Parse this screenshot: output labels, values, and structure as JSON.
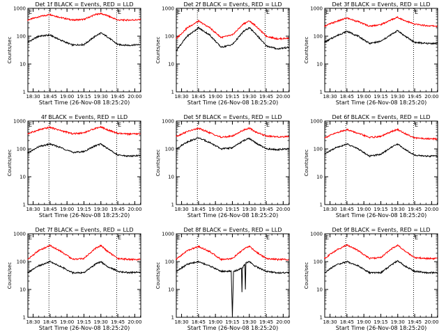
{
  "chart_data": [
    {
      "type": "line",
      "title": "Det 1f BLACK = Events, RED = LLD",
      "xlabel": "Start Time (26-Nov-08 18:25:20)",
      "ylabel": "Counts/sec",
      "xlim": [
        "18:25:20",
        "20:05:20"
      ],
      "ylim": [
        1,
        1000
      ],
      "yscale": "log",
      "xticks": [
        "18:30",
        "18:45",
        "19:00",
        "19:15",
        "19:30",
        "19:45",
        "20:00"
      ],
      "yticks": [
        "1",
        "10",
        "100",
        "1000"
      ],
      "vlines": [
        "18:44",
        "19:44"
      ],
      "markers": [
        {
          "text": "E",
          "at": "18:25"
        },
        {
          "text": "E",
          "at": "19:44"
        }
      ],
      "series": [
        {
          "color": "#ff0000",
          "x": [
            "18:25",
            "18:35",
            "18:45",
            "18:55",
            "19:05",
            "19:15",
            "19:25",
            "19:30",
            "19:35",
            "19:45",
            "19:55",
            "20:05"
          ],
          "values": [
            380,
            500,
            600,
            460,
            380,
            400,
            600,
            650,
            560,
            380,
            380,
            390
          ]
        },
        {
          "color": "#000000",
          "x": [
            "18:25",
            "18:35",
            "18:45",
            "18:55",
            "19:05",
            "19:15",
            "19:25",
            "19:30",
            "19:35",
            "19:45",
            "19:55",
            "20:05"
          ],
          "values": [
            60,
            100,
            110,
            70,
            48,
            50,
            100,
            130,
            100,
            50,
            47,
            50
          ]
        }
      ]
    },
    {
      "type": "line",
      "title": "Det 2f BLACK = Events, RED = LLD",
      "xlabel": "Start Time (26-Nov-08 18:25:20)",
      "ylabel": "Counts/sec",
      "xlim": [
        "18:25:20",
        "20:05:20"
      ],
      "ylim": [
        1,
        1000
      ],
      "yscale": "log",
      "xticks": [
        "18:30",
        "18:45",
        "19:00",
        "19:15",
        "19:30",
        "19:45",
        "20:00"
      ],
      "yticks": [
        "1",
        "10",
        "100",
        "1000"
      ],
      "vlines": [
        "18:44",
        "19:44"
      ],
      "markers": [
        {
          "text": "E",
          "at": "18:25"
        },
        {
          "text": "E",
          "at": "19:44"
        }
      ],
      "series": [
        {
          "color": "#ff0000",
          "x": [
            "18:25",
            "18:35",
            "18:45",
            "18:55",
            "19:05",
            "19:15",
            "19:25",
            "19:30",
            "19:35",
            "19:45",
            "19:55",
            "20:05"
          ],
          "values": [
            80,
            200,
            350,
            200,
            90,
            110,
            280,
            350,
            250,
            100,
            80,
            85
          ]
        },
        {
          "color": "#000000",
          "x": [
            "18:25",
            "18:35",
            "18:45",
            "18:55",
            "19:05",
            "19:15",
            "19:25",
            "19:30",
            "19:35",
            "19:45",
            "19:55",
            "20:05"
          ],
          "values": [
            30,
            100,
            200,
            110,
            40,
            50,
            150,
            200,
            130,
            45,
            35,
            40
          ]
        }
      ]
    },
    {
      "type": "line",
      "title": "Det 3f BLACK = Events, RED = LLD",
      "xlabel": "Start Time (26-Nov-08 18:25:20)",
      "ylabel": "Counts/sec",
      "xlim": [
        "18:25:20",
        "20:05:20"
      ],
      "ylim": [
        1,
        1000
      ],
      "yscale": "log",
      "xticks": [
        "18:30",
        "18:45",
        "19:00",
        "19:15",
        "19:30",
        "19:45",
        "20:00"
      ],
      "yticks": [
        "1",
        "10",
        "100",
        "1000"
      ],
      "vlines": [
        "18:44",
        "19:44"
      ],
      "markers": [
        {
          "text": "E",
          "at": "18:25"
        },
        {
          "text": "E",
          "at": "19:44"
        }
      ],
      "series": [
        {
          "color": "#ff0000",
          "x": [
            "18:25",
            "18:35",
            "18:45",
            "18:55",
            "19:05",
            "19:15",
            "19:25",
            "19:30",
            "19:35",
            "19:45",
            "19:55",
            "20:05"
          ],
          "values": [
            230,
            330,
            450,
            330,
            230,
            260,
            400,
            480,
            380,
            270,
            240,
            230
          ]
        },
        {
          "color": "#000000",
          "x": [
            "18:25",
            "18:35",
            "18:45",
            "18:55",
            "19:05",
            "19:15",
            "19:25",
            "19:30",
            "19:35",
            "19:45",
            "19:55",
            "20:05"
          ],
          "values": [
            60,
            100,
            150,
            100,
            55,
            65,
            120,
            160,
            110,
            60,
            55,
            55
          ]
        }
      ]
    },
    {
      "type": "line",
      "title": "4f BLACK = Events, RED = LLD",
      "xlabel": "Start Time (26-Nov-08 18:25:20)",
      "ylabel": "Counts/sec",
      "xlim": [
        "18:25:20",
        "20:05:20"
      ],
      "ylim": [
        1,
        1000
      ],
      "yscale": "log",
      "xticks": [
        "18:30",
        "18:45",
        "19:00",
        "19:15",
        "19:30",
        "19:45",
        "20:00"
      ],
      "yticks": [
        "1",
        "10",
        "100",
        "1000"
      ],
      "vlines": [
        "18:44",
        "19:44"
      ],
      "markers": [
        {
          "text": "E",
          "at": "18:25"
        },
        {
          "text": "E",
          "at": "19:44"
        }
      ],
      "series": [
        {
          "color": "#ff0000",
          "x": [
            "18:25",
            "18:35",
            "18:45",
            "18:55",
            "19:05",
            "19:15",
            "19:25",
            "19:30",
            "19:35",
            "19:45",
            "19:55",
            "20:05"
          ],
          "values": [
            350,
            480,
            600,
            450,
            350,
            380,
            550,
            620,
            500,
            360,
            340,
            350
          ]
        },
        {
          "color": "#000000",
          "x": [
            "18:25",
            "18:35",
            "18:45",
            "18:55",
            "19:05",
            "19:15",
            "19:25",
            "19:30",
            "19:35",
            "19:45",
            "19:55",
            "20:05"
          ],
          "values": [
            70,
            120,
            150,
            110,
            75,
            80,
            130,
            150,
            110,
            60,
            55,
            58
          ]
        }
      ]
    },
    {
      "type": "line",
      "title": "Det 5f BLACK = Events, RED = LLD",
      "xlabel": "Start Time (26-Nov-08 18:25:20)",
      "ylabel": "Counts/sec",
      "xlim": [
        "18:25:20",
        "20:05:20"
      ],
      "ylim": [
        1,
        1000
      ],
      "yscale": "log",
      "xticks": [
        "18:30",
        "18:45",
        "19:00",
        "19:15",
        "19:30",
        "19:45",
        "20:00"
      ],
      "yticks": [
        "1",
        "10",
        "100",
        "1000"
      ],
      "vlines": [
        "18:44",
        "19:44"
      ],
      "markers": [
        {
          "text": "E",
          "at": "18:25"
        },
        {
          "text": "E",
          "at": "19:44"
        }
      ],
      "series": [
        {
          "color": "#ff0000",
          "x": [
            "18:25",
            "18:35",
            "18:45",
            "18:55",
            "19:05",
            "19:15",
            "19:25",
            "19:30",
            "19:35",
            "19:45",
            "19:55",
            "20:05"
          ],
          "values": [
            280,
            420,
            550,
            380,
            260,
            290,
            480,
            560,
            420,
            290,
            270,
            280
          ]
        },
        {
          "color": "#000000",
          "x": [
            "18:25",
            "18:35",
            "18:45",
            "18:55",
            "19:05",
            "19:15",
            "19:25",
            "19:30",
            "19:35",
            "19:45",
            "19:55",
            "20:05"
          ],
          "values": [
            100,
            180,
            250,
            170,
            100,
            110,
            200,
            240,
            170,
            100,
            95,
            100
          ]
        }
      ]
    },
    {
      "type": "line",
      "title": "Det 6f BLACK = Events, RED = LLD",
      "xlabel": "Start Time (26-Nov-08 18:25:20)",
      "ylabel": "Counts/sec",
      "xlim": [
        "18:25:20",
        "20:05:20"
      ],
      "ylim": [
        1,
        1000
      ],
      "yscale": "log",
      "xticks": [
        "18:30",
        "18:45",
        "19:00",
        "19:15",
        "19:30",
        "19:45",
        "20:00"
      ],
      "yticks": [
        "1",
        "10",
        "100",
        "1000"
      ],
      "vlines": [
        "18:44",
        "19:44"
      ],
      "markers": [
        {
          "text": "E",
          "at": "18:25"
        },
        {
          "text": "E",
          "at": "19:44"
        }
      ],
      "series": [
        {
          "color": "#ff0000",
          "x": [
            "18:25",
            "18:35",
            "18:45",
            "18:55",
            "19:05",
            "19:15",
            "19:25",
            "19:30",
            "19:35",
            "19:45",
            "19:55",
            "20:05"
          ],
          "values": [
            250,
            370,
            500,
            360,
            260,
            280,
            430,
            500,
            380,
            250,
            230,
            230
          ]
        },
        {
          "color": "#000000",
          "x": [
            "18:25",
            "18:35",
            "18:45",
            "18:55",
            "19:05",
            "19:15",
            "19:25",
            "19:30",
            "19:35",
            "19:45",
            "19:55",
            "20:05"
          ],
          "values": [
            65,
            110,
            150,
            100,
            55,
            65,
            120,
            150,
            105,
            60,
            55,
            55
          ]
        }
      ]
    },
    {
      "type": "line",
      "title": "Det 7f BLACK = Events, RED = LLD",
      "xlabel": "Start Time (26-Nov-08 18:25:20)",
      "ylabel": "Counts/sec",
      "xlim": [
        "18:25:20",
        "20:05:20"
      ],
      "ylim": [
        1,
        1000
      ],
      "yscale": "log",
      "xticks": [
        "18:30",
        "18:45",
        "19:00",
        "19:15",
        "19:30",
        "19:45",
        "20:00"
      ],
      "yticks": [
        "1",
        "10",
        "100",
        "1000"
      ],
      "vlines": [
        "18:44",
        "19:44"
      ],
      "markers": [
        {
          "text": "E",
          "at": "18:25"
        },
        {
          "text": "E",
          "at": "19:44"
        }
      ],
      "series": [
        {
          "color": "#ff0000",
          "x": [
            "18:25",
            "18:35",
            "18:45",
            "18:55",
            "19:05",
            "19:15",
            "19:25",
            "19:30",
            "19:35",
            "19:45",
            "19:55",
            "20:05"
          ],
          "values": [
            120,
            250,
            380,
            230,
            120,
            130,
            300,
            380,
            250,
            130,
            120,
            120
          ]
        },
        {
          "color": "#000000",
          "x": [
            "18:25",
            "18:35",
            "18:45",
            "18:55",
            "19:05",
            "19:15",
            "19:25",
            "19:30",
            "19:35",
            "19:45",
            "19:55",
            "20:05"
          ],
          "values": [
            40,
            70,
            100,
            65,
            40,
            40,
            80,
            100,
            70,
            45,
            40,
            42
          ]
        }
      ]
    },
    {
      "type": "line",
      "title": "Det 8f BLACK = Events, RED = LLD",
      "xlabel": "Start Time (26-Nov-08 18:25:20)",
      "ylabel": "Counts/sec",
      "xlim": [
        "18:25:20",
        "20:05:20"
      ],
      "ylim": [
        1,
        1000
      ],
      "yscale": "log",
      "xticks": [
        "18:30",
        "18:45",
        "19:00",
        "19:15",
        "19:30",
        "19:45",
        "20:00"
      ],
      "yticks": [
        "1",
        "10",
        "100",
        "1000"
      ],
      "vlines": [
        "18:44",
        "19:44"
      ],
      "markers": [
        {
          "text": "E",
          "at": "18:25"
        },
        {
          "text": "E",
          "at": "19:44"
        }
      ],
      "series": [
        {
          "color": "#ff0000",
          "x": [
            "18:25",
            "18:35",
            "18:45",
            "18:55",
            "19:05",
            "19:15",
            "19:25",
            "19:30",
            "19:35",
            "19:45",
            "19:55",
            "20:05"
          ],
          "values": [
            120,
            250,
            350,
            230,
            120,
            130,
            280,
            360,
            240,
            130,
            120,
            120
          ]
        },
        {
          "color": "#000000",
          "x": [
            "18:25",
            "18:35",
            "18:45",
            "18:55",
            "19:05",
            "19:14",
            "19:15",
            "19:16",
            "19:20",
            "19:23",
            "19:23.5",
            "19:24",
            "19:26",
            "19:26.5",
            "19:27",
            "19:30",
            "19:35",
            "19:45",
            "19:55",
            "20:05"
          ],
          "values": [
            45,
            80,
            100,
            70,
            45,
            45,
            1,
            45,
            50,
            60,
            8,
            60,
            80,
            10,
            90,
            100,
            70,
            45,
            40,
            40
          ]
        }
      ]
    },
    {
      "type": "line",
      "title": "Det 9f BLACK = Events, RED = LLD",
      "xlabel": "Start Time (26-Nov-08 18:25:20)",
      "ylabel": "Counts/sec",
      "xlim": [
        "18:25:20",
        "20:05:20"
      ],
      "ylim": [
        1,
        1000
      ],
      "yscale": "log",
      "xticks": [
        "18:30",
        "18:45",
        "19:00",
        "19:15",
        "19:30",
        "19:45",
        "20:00"
      ],
      "yticks": [
        "1",
        "10",
        "100",
        "1000"
      ],
      "vlines": [
        "18:44",
        "19:44"
      ],
      "markers": [
        {
          "text": "E",
          "at": "18:25"
        },
        {
          "text": "E",
          "at": "19:44"
        }
      ],
      "series": [
        {
          "color": "#ff0000",
          "x": [
            "18:25",
            "18:35",
            "18:45",
            "18:55",
            "19:05",
            "19:15",
            "19:25",
            "19:30",
            "19:35",
            "19:45",
            "19:55",
            "20:05"
          ],
          "values": [
            130,
            250,
            400,
            250,
            130,
            140,
            300,
            400,
            260,
            140,
            130,
            130
          ]
        },
        {
          "color": "#000000",
          "x": [
            "18:25",
            "18:35",
            "18:45",
            "18:55",
            "19:05",
            "19:15",
            "19:25",
            "19:30",
            "19:35",
            "19:45",
            "19:55",
            "20:05"
          ],
          "values": [
            40,
            75,
            100,
            70,
            40,
            40,
            80,
            110,
            75,
            45,
            40,
            40
          ]
        }
      ]
    }
  ]
}
